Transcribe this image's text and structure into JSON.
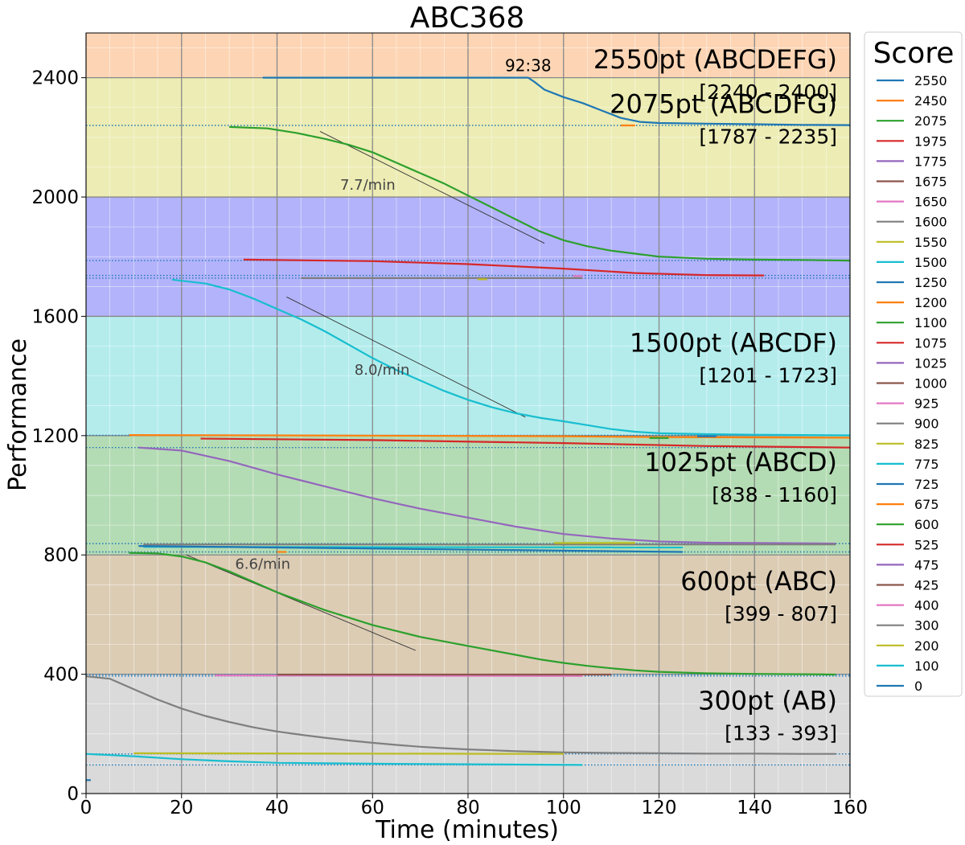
{
  "chart_data": {
    "type": "line",
    "title": "ABC368",
    "xlabel": "Time (minutes)",
    "ylabel": "Performance",
    "xlim": [
      0,
      160
    ],
    "ylim": [
      0,
      2550
    ],
    "x_ticks": [
      "0",
      "20",
      "40",
      "60",
      "80",
      "100",
      "120",
      "140",
      "160"
    ],
    "y_ticks": [
      "0",
      "400",
      "800",
      "1200",
      "1600",
      "2000",
      "2400"
    ],
    "grid": true,
    "legend_title": "Score",
    "legend_placement": "right",
    "bands": [
      {
        "label": "2550pt (ABCDEFG)",
        "range": "[2240 - 2400]",
        "y0": 2400,
        "y1": 2550,
        "color": "#fdd5b4"
      },
      {
        "label": "2075pt (ABCDFG)",
        "range": "[1787 - 2235]",
        "y0": 2000,
        "y1": 2400,
        "color": "#ececb4"
      },
      {
        "label": "",
        "range": "",
        "y0": 1600,
        "y1": 2000,
        "color": "#b3b3fb"
      },
      {
        "label": "1500pt (ABCDF)",
        "range": "[1201 - 1723]",
        "y0": 1200,
        "y1": 1600,
        "color": "#b4ecec"
      },
      {
        "label": "1025pt (ABCD)",
        "range": "[838 - 1160]",
        "y0": 800,
        "y1": 1200,
        "color": "#b4dcb4"
      },
      {
        "label": "600pt (ABC)",
        "range": "[399 - 807]",
        "y0": 400,
        "y1": 800,
        "color": "#dcccb4"
      },
      {
        "label": "300pt (AB)",
        "range": "[133 - 393]",
        "y0": 0,
        "y1": 400,
        "color": "#dadada"
      }
    ],
    "annotations": [
      {
        "text": "92:38",
        "x": 92.6,
        "y": 2400
      },
      {
        "text": "7.7/min",
        "x": 59,
        "y": 2040,
        "slope_line": {
          "x0": 49,
          "y0": 2220,
          "x1": 96,
          "y1": 1845
        }
      },
      {
        "text": "8.0/min",
        "x": 62,
        "y": 1420,
        "slope_line": {
          "x0": 42,
          "y0": 1665,
          "x1": 92,
          "y1": 1262
        }
      },
      {
        "text": "6.6/min",
        "x": 37,
        "y": 770,
        "slope_line": {
          "x0": 21,
          "y0": 800,
          "x1": 69,
          "y1": 480
        }
      }
    ],
    "legend": [
      {
        "name": "2550",
        "color": "#1f77b4"
      },
      {
        "name": "2450",
        "color": "#ff7f0e"
      },
      {
        "name": "2075",
        "color": "#2ca02c"
      },
      {
        "name": "1975",
        "color": "#d62728"
      },
      {
        "name": "1775",
        "color": "#9467bd"
      },
      {
        "name": "1675",
        "color": "#8c564b"
      },
      {
        "name": "1650",
        "color": "#e377c2"
      },
      {
        "name": "1600",
        "color": "#7f7f7f"
      },
      {
        "name": "1550",
        "color": "#bcbd22"
      },
      {
        "name": "1500",
        "color": "#17becf"
      },
      {
        "name": "1250",
        "color": "#1f77b4"
      },
      {
        "name": "1200",
        "color": "#ff7f0e"
      },
      {
        "name": "1100",
        "color": "#2ca02c"
      },
      {
        "name": "1075",
        "color": "#d62728"
      },
      {
        "name": "1025",
        "color": "#9467bd"
      },
      {
        "name": "1000",
        "color": "#8c564b"
      },
      {
        "name": "925",
        "color": "#e377c2"
      },
      {
        "name": "900",
        "color": "#7f7f7f"
      },
      {
        "name": "825",
        "color": "#bcbd22"
      },
      {
        "name": "775",
        "color": "#17becf"
      },
      {
        "name": "725",
        "color": "#1f77b4"
      },
      {
        "name": "675",
        "color": "#ff7f0e"
      },
      {
        "name": "600",
        "color": "#2ca02c"
      },
      {
        "name": "525",
        "color": "#d62728"
      },
      {
        "name": "475",
        "color": "#9467bd"
      },
      {
        "name": "425",
        "color": "#8c564b"
      },
      {
        "name": "400",
        "color": "#e377c2"
      },
      {
        "name": "300",
        "color": "#7f7f7f"
      },
      {
        "name": "200",
        "color": "#bcbd22"
      },
      {
        "name": "100",
        "color": "#17becf"
      },
      {
        "name": "0",
        "color": "#1f77b4"
      }
    ],
    "series": [
      {
        "score": "2550",
        "color": "#1f77b4",
        "points": [
          [
            37,
            2400
          ],
          [
            90,
            2400
          ],
          [
            92.6,
            2400
          ],
          [
            94,
            2385
          ],
          [
            96,
            2360
          ],
          [
            100,
            2335
          ],
          [
            104,
            2315
          ],
          [
            108,
            2290
          ],
          [
            112,
            2265
          ],
          [
            116,
            2252
          ],
          [
            120,
            2248
          ],
          [
            130,
            2246
          ],
          [
            140,
            2244
          ],
          [
            150,
            2242
          ],
          [
            160,
            2241
          ]
        ]
      },
      {
        "score": "2450",
        "color": "#ff7f0e",
        "points": [
          [
            112,
            2240
          ],
          [
            115,
            2240
          ]
        ]
      },
      {
        "score": "2075",
        "color": "#2ca02c",
        "points": [
          [
            30,
            2235
          ],
          [
            38,
            2230
          ],
          [
            44,
            2215
          ],
          [
            50,
            2195
          ],
          [
            55,
            2175
          ],
          [
            60,
            2150
          ],
          [
            65,
            2115
          ],
          [
            70,
            2080
          ],
          [
            75,
            2045
          ],
          [
            80,
            2005
          ],
          [
            85,
            1965
          ],
          [
            90,
            1925
          ],
          [
            95,
            1885
          ],
          [
            100,
            1855
          ],
          [
            105,
            1835
          ],
          [
            110,
            1820
          ],
          [
            115,
            1810
          ],
          [
            120,
            1800
          ],
          [
            130,
            1793
          ],
          [
            140,
            1790
          ],
          [
            150,
            1789
          ],
          [
            160,
            1787
          ]
        ]
      },
      {
        "score": "1975",
        "color": "#d62728",
        "points": [
          [
            33,
            1790
          ],
          [
            60,
            1785
          ],
          [
            80,
            1775
          ],
          [
            100,
            1760
          ],
          [
            115,
            1745
          ],
          [
            130,
            1738
          ],
          [
            142,
            1737
          ]
        ]
      },
      {
        "score": "1600",
        "color": "#7f7f7f",
        "points": [
          [
            45,
            1728
          ],
          [
            104,
            1728
          ]
        ]
      },
      {
        "score": "1550",
        "color": "#bcbd22",
        "points": [
          [
            82,
            1724
          ],
          [
            84,
            1724
          ]
        ]
      },
      {
        "score": "1650",
        "color": "#e377c2",
        "points": [
          [
            102,
            1735
          ],
          [
            104,
            1735
          ]
        ]
      },
      {
        "score": "1500",
        "color": "#17becf",
        "points": [
          [
            18,
            1723
          ],
          [
            25,
            1710
          ],
          [
            30,
            1690
          ],
          [
            35,
            1660
          ],
          [
            40,
            1625
          ],
          [
            45,
            1590
          ],
          [
            50,
            1550
          ],
          [
            55,
            1505
          ],
          [
            60,
            1460
          ],
          [
            65,
            1420
          ],
          [
            70,
            1385
          ],
          [
            75,
            1350
          ],
          [
            80,
            1320
          ],
          [
            85,
            1295
          ],
          [
            90,
            1275
          ],
          [
            95,
            1260
          ],
          [
            100,
            1248
          ],
          [
            105,
            1235
          ],
          [
            110,
            1222
          ],
          [
            115,
            1213
          ],
          [
            120,
            1208
          ],
          [
            130,
            1205
          ],
          [
            140,
            1203
          ],
          [
            150,
            1202
          ],
          [
            160,
            1201
          ]
        ]
      },
      {
        "score": "1200",
        "color": "#ff7f0e",
        "points": [
          [
            9,
            1202
          ],
          [
            60,
            1200
          ],
          [
            100,
            1198
          ],
          [
            120,
            1195
          ],
          [
            160,
            1193
          ]
        ]
      },
      {
        "score": "1075",
        "color": "#d62728",
        "points": [
          [
            24,
            1190
          ],
          [
            60,
            1185
          ],
          [
            100,
            1175
          ],
          [
            130,
            1165
          ],
          [
            160,
            1160
          ]
        ]
      },
      {
        "score": "1100",
        "color": "#2ca02c",
        "points": [
          [
            118,
            1192
          ],
          [
            122,
            1192
          ]
        ]
      },
      {
        "score": "1250",
        "color": "#1f77b4",
        "points": [
          [
            128,
            1198
          ],
          [
            132,
            1198
          ]
        ]
      },
      {
        "score": "1025",
        "color": "#9467bd",
        "points": [
          [
            11,
            1160
          ],
          [
            20,
            1150
          ],
          [
            30,
            1115
          ],
          [
            40,
            1070
          ],
          [
            50,
            1030
          ],
          [
            60,
            990
          ],
          [
            70,
            955
          ],
          [
            80,
            925
          ],
          [
            90,
            895
          ],
          [
            100,
            870
          ],
          [
            110,
            855
          ],
          [
            120,
            845
          ],
          [
            130,
            841
          ],
          [
            140,
            840
          ],
          [
            150,
            839
          ],
          [
            157,
            838
          ]
        ]
      },
      {
        "score": "900",
        "color": "#7f7f7f",
        "points": [
          [
            12,
            835
          ],
          [
            157,
            835
          ]
        ]
      },
      {
        "score": "825",
        "color": "#bcbd22",
        "points": [
          [
            98,
            840
          ],
          [
            115,
            840
          ]
        ]
      },
      {
        "score": "775",
        "color": "#17becf",
        "points": [
          [
            12,
            827
          ],
          [
            125,
            825
          ]
        ]
      },
      {
        "score": "725",
        "color": "#1f77b4",
        "points": [
          [
            11,
            830
          ],
          [
            125,
            810
          ]
        ]
      },
      {
        "score": "675",
        "color": "#ff7f0e",
        "points": [
          [
            40,
            810
          ],
          [
            42,
            810
          ]
        ]
      },
      {
        "score": "600",
        "color": "#2ca02c",
        "points": [
          [
            9,
            807
          ],
          [
            15,
            805
          ],
          [
            20,
            795
          ],
          [
            25,
            775
          ],
          [
            30,
            745
          ],
          [
            35,
            710
          ],
          [
            40,
            675
          ],
          [
            45,
            645
          ],
          [
            50,
            615
          ],
          [
            55,
            590
          ],
          [
            60,
            565
          ],
          [
            65,
            545
          ],
          [
            70,
            525
          ],
          [
            75,
            510
          ],
          [
            80,
            495
          ],
          [
            85,
            480
          ],
          [
            90,
            465
          ],
          [
            95,
            450
          ],
          [
            100,
            438
          ],
          [
            105,
            428
          ],
          [
            110,
            420
          ],
          [
            115,
            413
          ],
          [
            120,
            408
          ],
          [
            130,
            403
          ],
          [
            140,
            401
          ],
          [
            150,
            400
          ],
          [
            157,
            399
          ]
        ]
      },
      {
        "score": "400",
        "color": "#e377c2",
        "points": [
          [
            27,
            396
          ],
          [
            104,
            394
          ]
        ]
      },
      {
        "score": "425",
        "color": "#8c564b",
        "points": [
          [
            40,
            399
          ],
          [
            110,
            399
          ]
        ]
      },
      {
        "score": "300",
        "color": "#7f7f7f",
        "points": [
          [
            0,
            393
          ],
          [
            5,
            385
          ],
          [
            10,
            350
          ],
          [
            15,
            315
          ],
          [
            20,
            285
          ],
          [
            25,
            260
          ],
          [
            30,
            240
          ],
          [
            35,
            222
          ],
          [
            40,
            208
          ],
          [
            45,
            197
          ],
          [
            50,
            187
          ],
          [
            55,
            178
          ],
          [
            60,
            170
          ],
          [
            65,
            163
          ],
          [
            70,
            157
          ],
          [
            75,
            152
          ],
          [
            80,
            148
          ],
          [
            85,
            145
          ],
          [
            90,
            142
          ],
          [
            95,
            140
          ],
          [
            100,
            138
          ],
          [
            110,
            136
          ],
          [
            120,
            135
          ],
          [
            130,
            134
          ],
          [
            140,
            134
          ],
          [
            150,
            133
          ],
          [
            157,
            133
          ]
        ]
      },
      {
        "score": "200",
        "color": "#bcbd22",
        "points": [
          [
            10,
            135
          ],
          [
            100,
            133
          ]
        ]
      },
      {
        "score": "100",
        "color": "#17becf",
        "points": [
          [
            0,
            133
          ],
          [
            10,
            125
          ],
          [
            20,
            115
          ],
          [
            30,
            108
          ],
          [
            40,
            103
          ],
          [
            60,
            100
          ],
          [
            80,
            98
          ],
          [
            104,
            96
          ]
        ]
      },
      {
        "score": "0",
        "color": "#1f77b4",
        "points": [
          [
            0,
            45
          ],
          [
            1,
            45
          ]
        ]
      }
    ],
    "dotted_levels": [
      {
        "y": 2240,
        "color": "#1f77b4"
      },
      {
        "y": 1787,
        "color": "#1f77b4"
      },
      {
        "y": 1737,
        "color": "#1f77b4"
      },
      {
        "y": 1728,
        "color": "#1f77b4"
      },
      {
        "y": 1201,
        "color": "#1f77b4"
      },
      {
        "y": 1160,
        "color": "#1f77b4"
      },
      {
        "y": 838,
        "color": "#1f77b4"
      },
      {
        "y": 810,
        "color": "#1f77b4"
      },
      {
        "y": 399,
        "color": "#1f77b4"
      },
      {
        "y": 394,
        "color": "#1f77b4"
      },
      {
        "y": 133,
        "color": "#1f77b4"
      },
      {
        "y": 96,
        "color": "#1f77b4"
      }
    ]
  }
}
